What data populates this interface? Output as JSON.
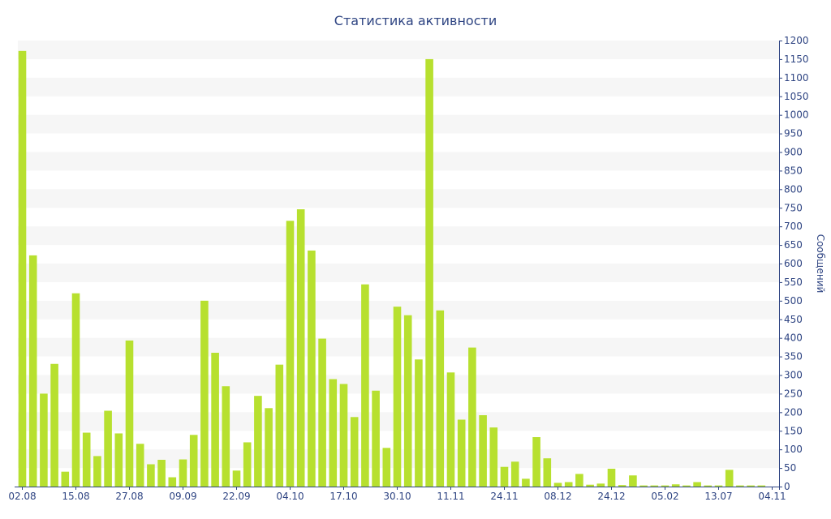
{
  "chart_data": {
    "type": "bar",
    "title": "Статистика активности",
    "xlabel": "",
    "ylabel": "Сообщений",
    "ylim": [
      0,
      1200
    ],
    "y_ticks": [
      0,
      50,
      100,
      150,
      200,
      250,
      300,
      350,
      400,
      450,
      500,
      550,
      600,
      650,
      700,
      750,
      800,
      850,
      900,
      950,
      1000,
      1050,
      1100,
      1150,
      1200
    ],
    "y_axis_side": "right",
    "grid": "alternating horizontal bands",
    "x_tick_labels": [
      "02.08",
      "15.08",
      "27.08",
      "09.09",
      "22.09",
      "04.10",
      "17.10",
      "30.10",
      "11.11",
      "24.11",
      "08.12",
      "24.12",
      "05.02",
      "13.07",
      "04.11"
    ],
    "x_tick_label_bar_index": [
      0,
      5,
      10,
      15,
      20,
      25,
      30,
      35,
      40,
      45,
      50,
      55,
      60,
      65,
      70
    ],
    "values": [
      1172,
      622,
      250,
      330,
      40,
      520,
      145,
      82,
      204,
      143,
      393,
      115,
      60,
      72,
      25,
      73,
      139,
      500,
      360,
      270,
      43,
      119,
      244,
      211,
      328,
      715,
      746,
      635,
      398,
      289,
      276,
      187,
      544,
      258,
      104,
      484,
      461,
      342,
      1150,
      474,
      307,
      180,
      374,
      192,
      159,
      53,
      67,
      21,
      133,
      76,
      10,
      12,
      34,
      5,
      8,
      48,
      4,
      30,
      3,
      3,
      3,
      6,
      3,
      12,
      3,
      3,
      45,
      3,
      3,
      3
    ],
    "colors": {
      "bar": "#b7e02f",
      "band": "#f6f6f6",
      "text": "#2e4482",
      "axis": "#2e4482"
    }
  }
}
